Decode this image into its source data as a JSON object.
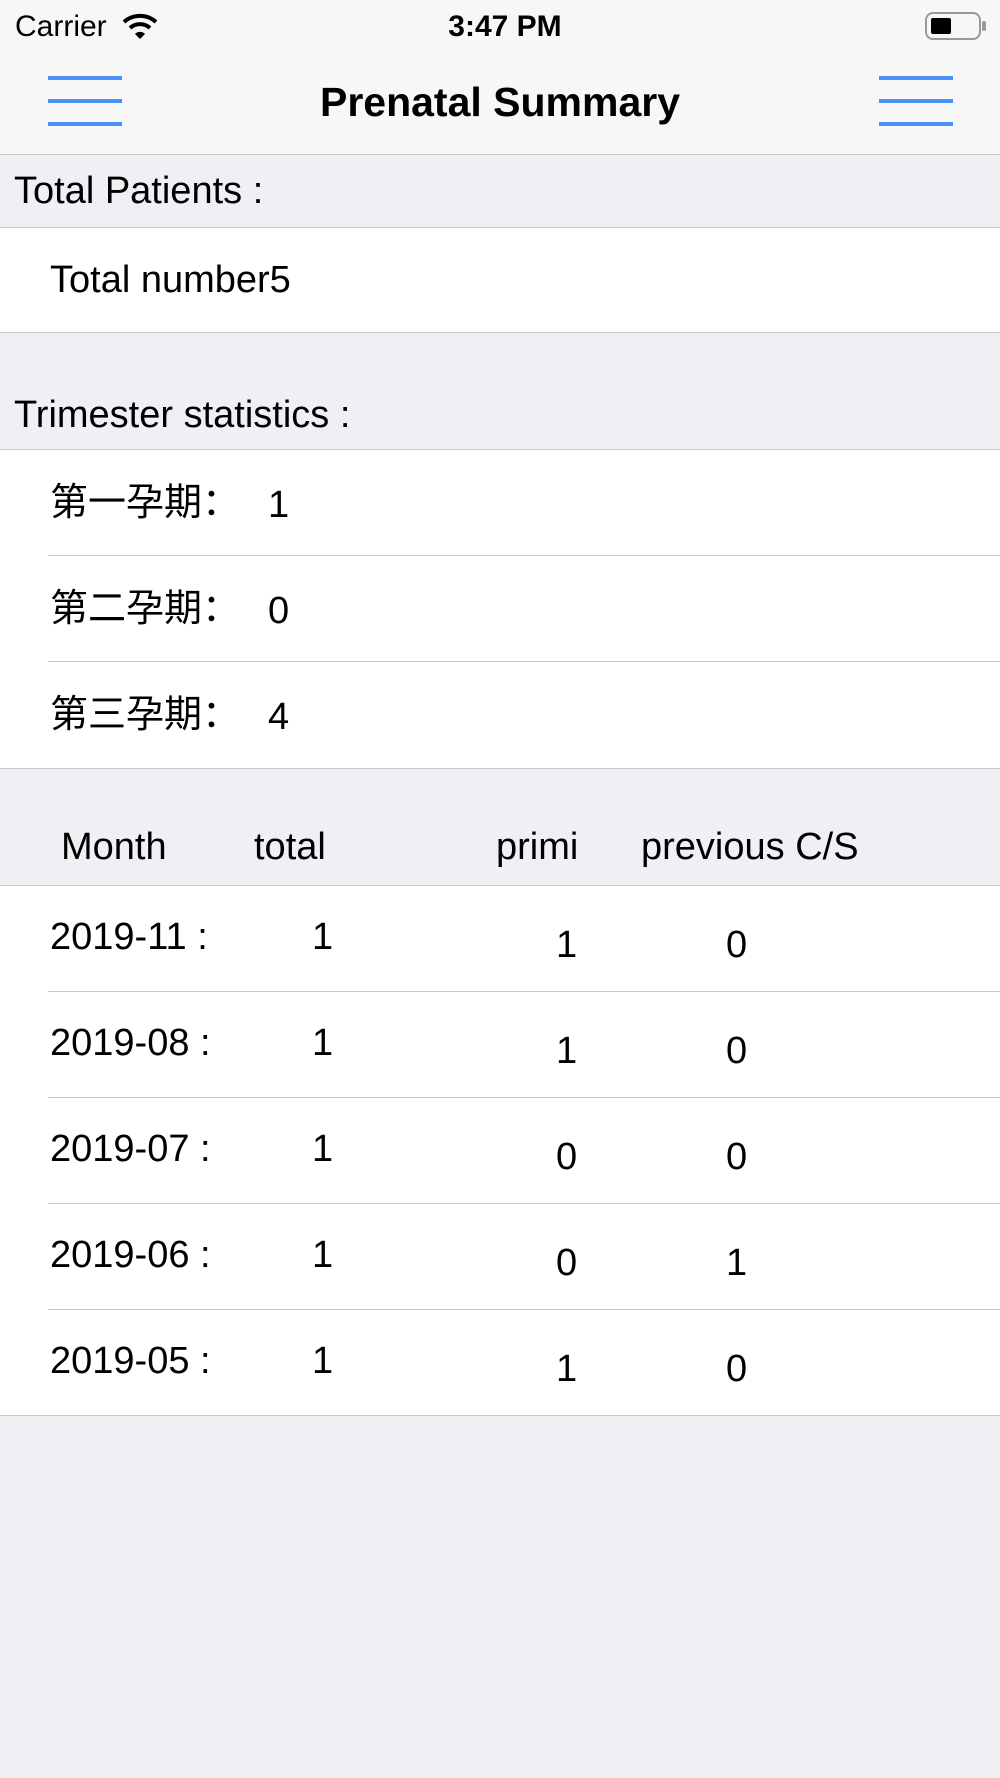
{
  "status_bar": {
    "carrier": "Carrier",
    "time": "3:47 PM"
  },
  "header": {
    "title": "Prenatal Summary"
  },
  "total_section": {
    "title": "Total Patients :",
    "text": "Total number5"
  },
  "trimester_section": {
    "title": "Trimester statistics :",
    "rows": [
      [
        "第一孕期：",
        "1"
      ],
      [
        "第二孕期：",
        "0"
      ],
      [
        "第三孕期：",
        "4"
      ]
    ]
  },
  "table": {
    "columns": [
      "Month",
      "total",
      "primi",
      "previous C/S"
    ],
    "rows": [
      [
        "2019-11 :",
        "1",
        "1",
        "0"
      ],
      [
        "2019-08 :",
        "1",
        "1",
        "0"
      ],
      [
        "2019-07 :",
        "1",
        "0",
        "0"
      ],
      [
        "2019-06 :",
        "1",
        "0",
        "1"
      ],
      [
        "2019-05 :",
        "1",
        "1",
        "0"
      ]
    ]
  }
}
